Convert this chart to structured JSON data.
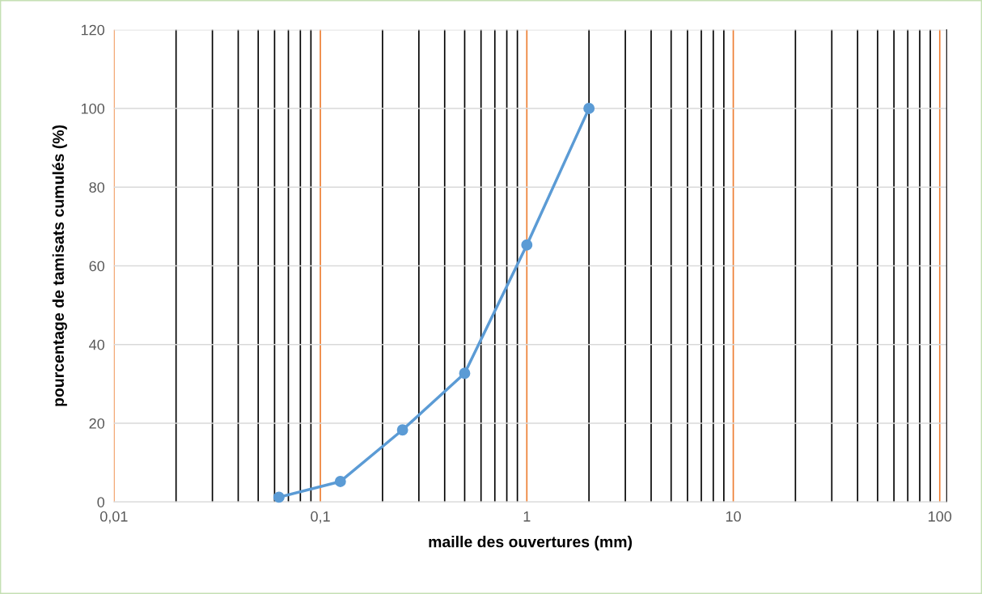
{
  "chart_data": {
    "type": "line",
    "xlabel": "maille des ouvertures (mm)",
    "ylabel": "pourcentage de tamisats cumulés (%)",
    "x": [
      0.063,
      0.125,
      0.25,
      0.5,
      1,
      2
    ],
    "series": [
      {
        "color": "#5b9bd5",
        "values": [
          1.2,
          5.2,
          18.3,
          32.7,
          65.3,
          100
        ]
      }
    ],
    "log": "x",
    "xlim": [
      0.01,
      108
    ],
    "xticks": [
      {
        "value": 0.01,
        "label": "0,01"
      },
      {
        "value": 0.1,
        "label": "0,1"
      },
      1,
      10,
      100
    ],
    "ylim": [
      0,
      120
    ],
    "yticks": [
      0,
      20,
      40,
      60,
      80,
      100,
      120
    ],
    "grid": true,
    "marker": "circle",
    "line_style": "solid",
    "legend": false
  }
}
